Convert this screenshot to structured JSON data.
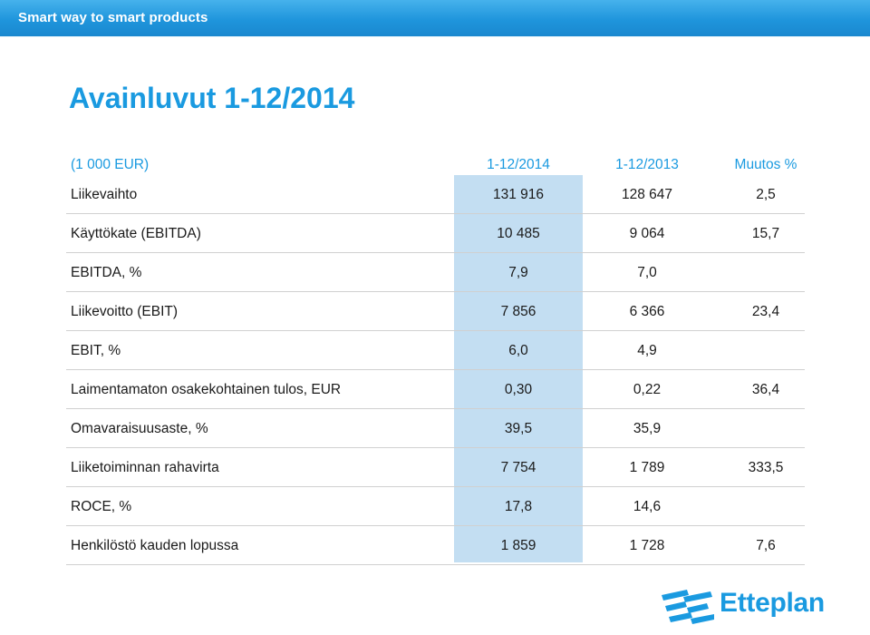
{
  "banner": {
    "tagline": "Smart way to smart products"
  },
  "page": {
    "title": "Avainluvut 1-12/2014"
  },
  "table": {
    "headers": [
      "(1 000 EUR)",
      "1-12/2014",
      "1-12/2013",
      "Muutos %"
    ],
    "rows": [
      [
        "Liikevaihto",
        "131 916",
        "128 647",
        "2,5"
      ],
      [
        "Käyttökate (EBITDA)",
        "10 485",
        "9 064",
        "15,7"
      ],
      [
        "EBITDA, %",
        "7,9",
        "7,0",
        ""
      ],
      [
        "Liikevoitto (EBIT)",
        "7 856",
        "6 366",
        "23,4"
      ],
      [
        "EBIT, %",
        "6,0",
        "4,9",
        ""
      ],
      [
        "Laimentamaton osakekohtainen tulos, EUR",
        "0,30",
        "0,22",
        "36,4"
      ],
      [
        "Omavaraisuusaste, %",
        "39,5",
        "35,9",
        ""
      ],
      [
        "Liiketoiminnan rahavirta",
        "7 754",
        "1 789",
        "333,5"
      ],
      [
        "ROCE, %",
        "17,8",
        "14,6",
        ""
      ],
      [
        "Henkilöstö kauden lopussa",
        "1 859",
        "1 728",
        "7,6"
      ]
    ]
  },
  "logo": {
    "text": "Etteplan"
  },
  "colors": {
    "brand_blue": "#1a9ae0",
    "highlight": "#c3def2"
  }
}
